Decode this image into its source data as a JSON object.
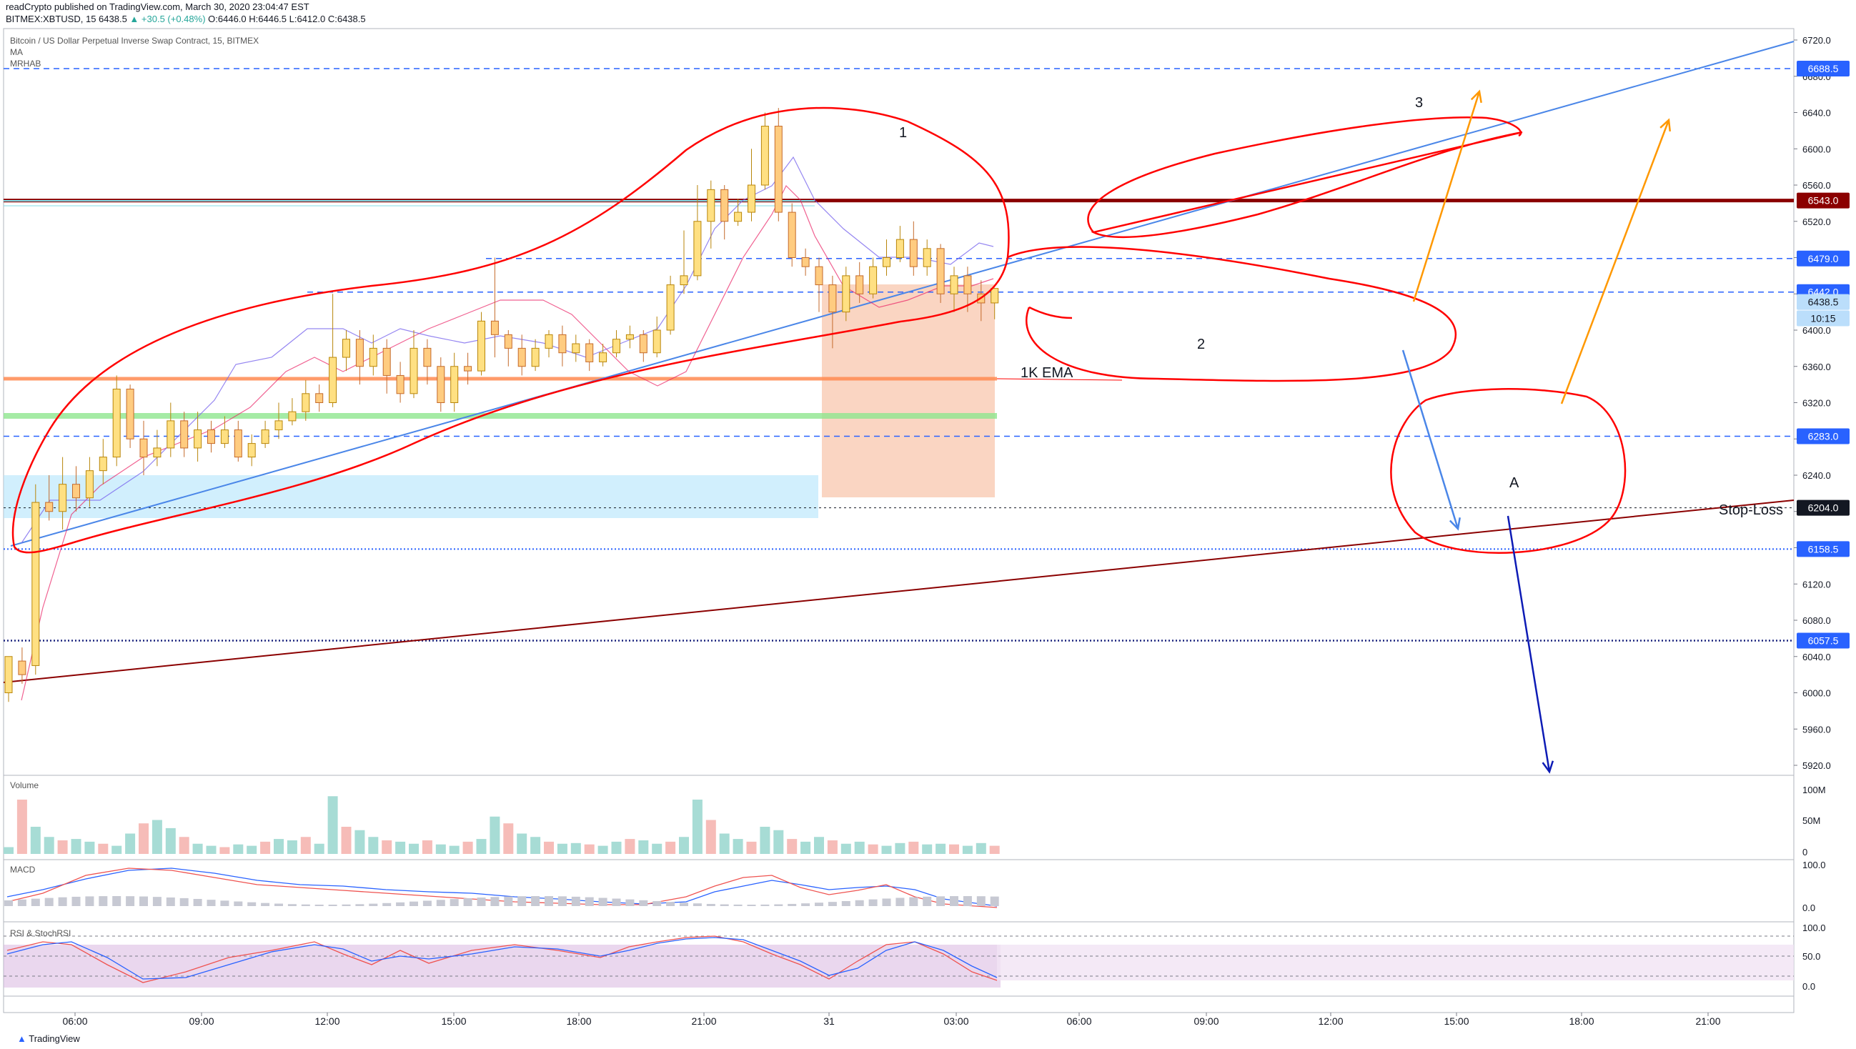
{
  "header": {
    "line1": "readCrypto published on TradingView.com, March 30, 2020 23:04:47 EST",
    "line2_pre": "BITMEX:XBTUSD, 15  6438.5",
    "line2_change": "▲ +30.5 (+0.48%)",
    "line2_post": "O:6446.0  H:6446.5  L:6412.0  C:6438.5"
  },
  "legend": {
    "title": "Bitcoin / US Dollar Perpetual Inverse Swap Contract, 15, BITMEX",
    "ma": "MA",
    "mrhab": "MRHAB"
  },
  "panes": {
    "volume": "Volume",
    "macd": "MACD",
    "rsi": "RSI & StochRSI"
  },
  "annotations": {
    "n1": "1",
    "n2": "2",
    "n3": "3",
    "a": "A",
    "ema": "1K EMA",
    "stop_loss": "Stop-Loss"
  },
  "price_tags": {
    "t6688": "6688.5",
    "t6543": "6543.0",
    "t6479": "6479.0",
    "t6442": "6442.0",
    "t6438": "6438.5",
    "countdown": "10:15",
    "t6283": "6283.0",
    "t6204": "6204.0",
    "t6158": "6158.5",
    "t6057": "6057.5"
  },
  "y_ticks": [
    "6720.0",
    "6680.0",
    "6640.0",
    "6600.0",
    "6560.0",
    "6520.0",
    "6480.0",
    "6440.0",
    "6400.0",
    "6360.0",
    "6320.0",
    "6280.0",
    "6240.0",
    "6200.0",
    "6160.0",
    "6120.0",
    "6080.0",
    "6040.0",
    "6000.0",
    "5960.0",
    "5920.0"
  ],
  "vol_ticks": [
    "100M",
    "50M",
    "0"
  ],
  "macd_ticks": [
    "100.0",
    "0.0"
  ],
  "rsi_ticks": [
    "100.0",
    "50.0",
    "0.0"
  ],
  "time_labels": [
    "06:00",
    "09:00",
    "12:00",
    "15:00",
    "18:00",
    "21:00",
    "31",
    "03:00",
    "06:00",
    "09:00",
    "12:00",
    "15:00",
    "18:00",
    "21:00"
  ],
  "footer": "TradingView",
  "colors": {
    "up": "#26a69a",
    "down": "#ef5350",
    "annot_red": "#ff0000",
    "orange": "#ff9800",
    "trend_blue": "#4a86e8",
    "dark_red": "#8b0000"
  },
  "chart_data": {
    "type": "candlestick",
    "symbol": "BITMEX:XBTUSD",
    "interval": "15",
    "ylim": [
      5910,
      6730
    ],
    "last_price": 6438.5,
    "levels": {
      "resistance_red": 6543.0,
      "dashed_6688": 6688.5,
      "dashed_6479": 6479.0,
      "dashed_6442": 6442.0,
      "dashed_6283": 6283.0,
      "stop_loss": 6204.0,
      "dotted_6158": 6158.5,
      "dotted_6057": 6057.5,
      "ema_1k": 6350,
      "green_ma": 6310
    }
  }
}
